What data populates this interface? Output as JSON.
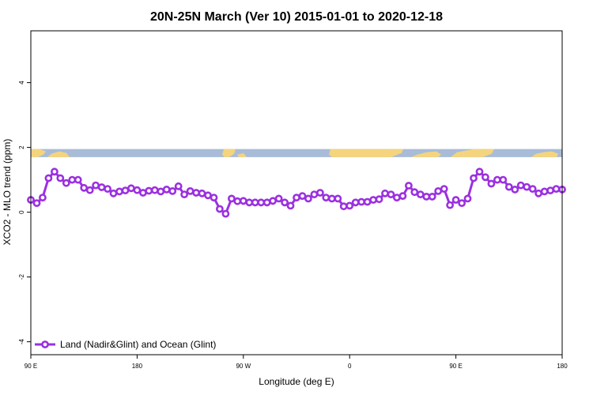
{
  "chart_data": {
    "type": "line",
    "title": "20N-25N March (Ver 10)   2015-01-01 to 2020-12-18",
    "xlabel": "Longitude (deg E)",
    "ylabel": "XCO2 - MLO trend (ppm)",
    "xlim": [
      0,
      90
    ],
    "ylim": [
      -4.4,
      5.6
    ],
    "x_ticks": [
      {
        "value": 0,
        "label": "90 E"
      },
      {
        "value": 18,
        "label": "180"
      },
      {
        "value": 36,
        "label": "90 W"
      },
      {
        "value": 54,
        "label": "0"
      },
      {
        "value": 72,
        "label": "90 E"
      },
      {
        "value": 90,
        "label": "180"
      }
    ],
    "y_ticks": [
      {
        "value": -4,
        "label": "-4"
      },
      {
        "value": -2,
        "label": "-2"
      },
      {
        "value": 0,
        "label": "0"
      },
      {
        "value": 2,
        "label": "2"
      },
      {
        "value": 4,
        "label": "4"
      }
    ],
    "grid": false,
    "legend_position": "bottom-left",
    "map_strip": {
      "y_range": [
        1.7,
        1.95
      ],
      "ocean_color": "#a8bcd8",
      "land_color": "#f5d47e"
    },
    "series": [
      {
        "name": "Land (Nadir&Glint) and Ocean (Glint)",
        "color": "#9b30e0",
        "x": [
          0,
          1,
          2,
          3,
          4,
          5,
          6,
          7,
          8,
          9,
          10,
          11,
          12,
          13,
          14,
          15,
          16,
          17,
          18,
          19,
          20,
          21,
          22,
          23,
          24,
          25,
          26,
          27,
          28,
          29,
          30,
          31,
          32,
          33,
          34,
          35,
          36,
          37,
          38,
          39,
          40,
          41,
          42,
          43,
          44,
          45,
          46,
          47,
          48,
          49,
          50,
          51,
          52,
          53,
          54,
          55,
          56,
          57,
          58,
          59,
          60,
          61,
          62,
          63,
          64,
          65,
          66,
          67,
          68,
          69,
          70,
          71,
          72,
          73,
          74,
          75,
          76,
          77,
          78,
          79,
          80,
          81,
          82,
          83,
          84,
          85,
          86,
          87,
          88,
          89,
          90
        ],
        "values": [
          0.38,
          0.28,
          0.45,
          1.05,
          1.25,
          1.05,
          0.9,
          1.0,
          1.0,
          0.75,
          0.68,
          0.83,
          0.77,
          0.72,
          0.58,
          0.64,
          0.67,
          0.74,
          0.68,
          0.6,
          0.66,
          0.68,
          0.64,
          0.7,
          0.65,
          0.8,
          0.55,
          0.65,
          0.6,
          0.58,
          0.52,
          0.45,
          0.1,
          -0.05,
          0.42,
          0.34,
          0.35,
          0.3,
          0.3,
          0.3,
          0.3,
          0.35,
          0.42,
          0.3,
          0.2,
          0.45,
          0.5,
          0.42,
          0.55,
          0.6,
          0.45,
          0.42,
          0.42,
          0.18,
          0.2,
          0.3,
          0.32,
          0.32,
          0.38,
          0.4,
          0.58,
          0.55,
          0.45,
          0.5,
          0.82,
          0.62,
          0.55,
          0.48,
          0.48,
          0.65,
          0.72,
          0.22,
          0.38,
          0.28,
          0.42,
          1.05,
          1.25,
          1.08,
          0.88,
          1.0,
          1.0,
          0.78,
          0.7,
          0.83,
          0.78,
          0.72,
          0.58,
          0.64,
          0.67,
          0.72,
          0.7
        ]
      }
    ]
  }
}
